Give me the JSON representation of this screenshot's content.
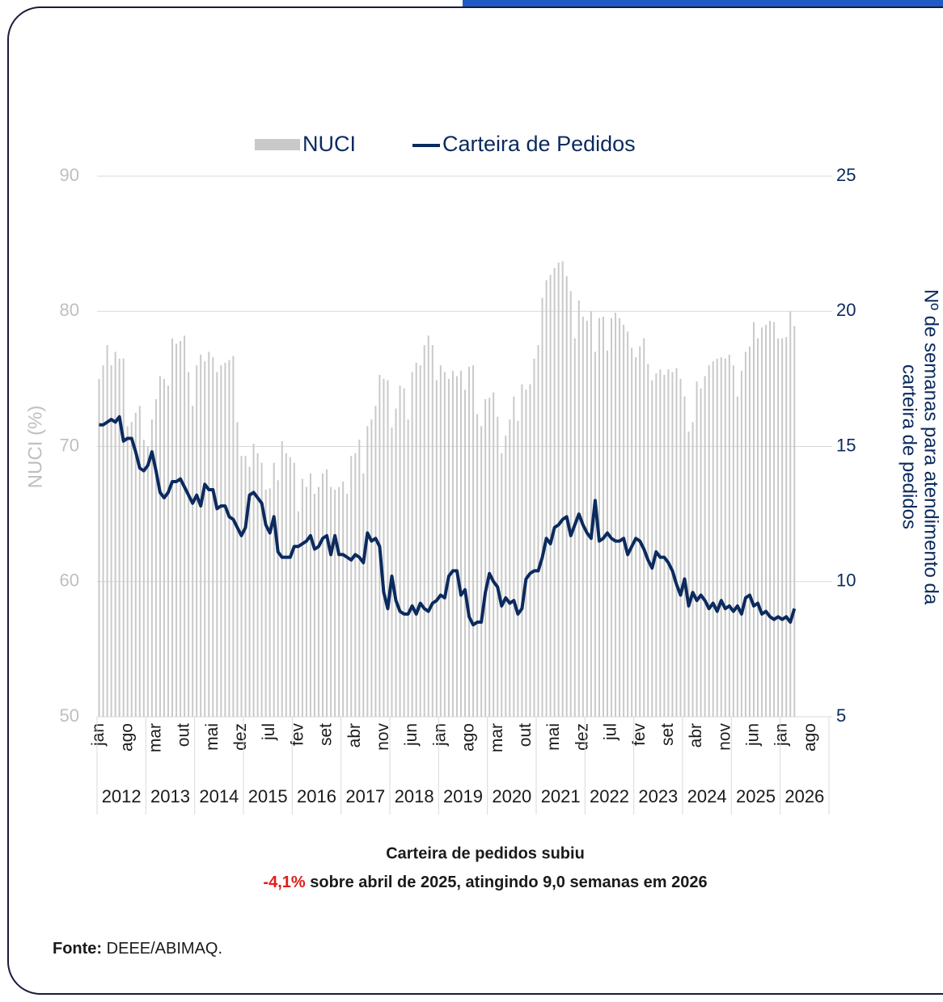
{
  "chart_data": {
    "type": "bar_line",
    "legend": "top",
    "grid": true,
    "categories": [
      "jan",
      null,
      null,
      null,
      null,
      null,
      null,
      "ago",
      null,
      null,
      null,
      null,
      null,
      null,
      "mar",
      null,
      null,
      null,
      null,
      null,
      null,
      "out",
      null,
      null,
      null,
      null,
      null,
      null,
      "mai",
      null,
      null,
      null,
      null,
      null,
      null,
      "dez",
      null,
      null,
      null,
      null,
      null,
      null,
      "jul",
      null,
      null,
      null,
      null,
      null,
      null,
      "fev",
      null,
      null,
      null,
      null,
      null,
      null,
      "set",
      null,
      null,
      null,
      null,
      null,
      null,
      "abr",
      null,
      null,
      null,
      null,
      null,
      null,
      "nov",
      null,
      null,
      null,
      null,
      null,
      null,
      "jun",
      null,
      null,
      null,
      null,
      null,
      null,
      "jan",
      null,
      null,
      null,
      null,
      null,
      null,
      "ago",
      null,
      null,
      null,
      null,
      null,
      null,
      "mar",
      null,
      null,
      null,
      null,
      null,
      null,
      "out",
      null,
      null,
      null,
      null,
      null,
      null,
      "mai",
      null,
      null,
      null,
      null,
      null,
      null,
      "dez",
      null,
      null,
      null,
      null,
      null,
      null,
      "jul",
      null,
      null,
      null,
      null,
      null,
      null,
      "fev",
      null,
      null,
      null,
      null,
      null,
      null,
      "set",
      null,
      null,
      null,
      null,
      null,
      null,
      "abr",
      null,
      null,
      null,
      null,
      null,
      null,
      "nov",
      null,
      null,
      null,
      null,
      null,
      null,
      "jun",
      null,
      null,
      null,
      null,
      null,
      null,
      "jan",
      null,
      null,
      null,
      null,
      null,
      null,
      "ago",
      null,
      null,
      null,
      null
    ],
    "years": [
      2012,
      2013,
      2014,
      2015,
      2016,
      2017,
      2018,
      2019,
      2020,
      2021,
      2022,
      2023,
      2024,
      2025,
      2026
    ],
    "ylabel": "NUCI (%)",
    "y2label": [
      "Nº de semanas para atendimento da",
      "carteira de pedidos"
    ],
    "ylim": [
      50,
      90
    ],
    "yticks": [
      50,
      60,
      70,
      80,
      90
    ],
    "y2lim": [
      5,
      25
    ],
    "y2ticks": [
      5,
      10,
      15,
      20,
      25
    ],
    "series": [
      {
        "name": "NUCI",
        "kind": "bar",
        "color": "#c9c9c9",
        "values": [
          75,
          76,
          77.5,
          76,
          77,
          76.5,
          76.5,
          71.5,
          71.8,
          72.5,
          73,
          70.5,
          70,
          72,
          73.5,
          75.2,
          75,
          74.5,
          78,
          77.6,
          77.8,
          78.2,
          75.5,
          73,
          76,
          76.8,
          76.3,
          77,
          76.6,
          75.5,
          76,
          76.2,
          76.4,
          76.7,
          71.8,
          69.3,
          69.3,
          68.5,
          70.2,
          69.5,
          68.8,
          66.8,
          66.9,
          68.8,
          67.5,
          70.4,
          69.5,
          69.2,
          68.8,
          65.2,
          67.6,
          67,
          68,
          66.5,
          67,
          68,
          68.3,
          67,
          66.8,
          67,
          67.4,
          66.5,
          69.3,
          69.5,
          70.5,
          68,
          71.5,
          72,
          73,
          75.3,
          75,
          74.9,
          71.4,
          72.8,
          74.5,
          74.3,
          72,
          75.5,
          76.2,
          76,
          77.5,
          78.2,
          77.5,
          74.9,
          76,
          75.5,
          75,
          75.6,
          75.2,
          75.6,
          74.2,
          75.9,
          76,
          72.4,
          71.5,
          73.5,
          73.6,
          74,
          72.2,
          69.5,
          70.8,
          72,
          73.7,
          71.9,
          74.6,
          74.2,
          74.6,
          76.5,
          77.5,
          81,
          82.3,
          82.7,
          83.2,
          83.6,
          83.7,
          82.6,
          81.5,
          78,
          80.8,
          79.6,
          79.3,
          80,
          77,
          79.5,
          79.6,
          77.1,
          79.5,
          79.9,
          79.5,
          79,
          78.5,
          77.3,
          76.6,
          77.4,
          78,
          76.1,
          74.9,
          75.4,
          75.7,
          75.3,
          75.7,
          75.5,
          75.8,
          75,
          73.7,
          71.1,
          71.8,
          74.8,
          74.3,
          75.2,
          76,
          76.3,
          76.5,
          76.6,
          76.5,
          76.8,
          76,
          73.7,
          75.6,
          77,
          77.4,
          79.2,
          78,
          78.8,
          79,
          79.3,
          79.2,
          78,
          78,
          78.1,
          80,
          78.9,
          null,
          null,
          null,
          null,
          null,
          null,
          null,
          null
        ]
      },
      {
        "name": "Carteira de Pedidos",
        "kind": "line",
        "axis": "y2",
        "color": "#0b2a5e",
        "values": [
          15.8,
          15.8,
          15.9,
          16,
          15.9,
          16.1,
          15.2,
          15.3,
          15.3,
          14.8,
          14.2,
          14.1,
          14.3,
          14.8,
          14.1,
          13.3,
          13.1,
          13.3,
          13.7,
          13.7,
          13.8,
          13.5,
          13.2,
          12.9,
          13.2,
          12.8,
          13.6,
          13.4,
          13.4,
          12.7,
          12.8,
          12.8,
          12.4,
          12.3,
          12,
          11.7,
          12,
          13.2,
          13.3,
          13.1,
          12.9,
          12.1,
          11.8,
          12.4,
          11.1,
          10.9,
          10.9,
          10.9,
          11.3,
          11.3,
          11.4,
          11.5,
          11.7,
          11.2,
          11.3,
          11.6,
          11.7,
          11,
          11.7,
          11,
          11,
          10.9,
          10.8,
          11,
          10.9,
          10.7,
          11.8,
          11.5,
          11.6,
          11.3,
          9.6,
          9,
          10.2,
          9.3,
          8.9,
          8.8,
          8.8,
          9.1,
          8.8,
          9.2,
          9,
          8.9,
          9.2,
          9.3,
          9.5,
          9.4,
          10.2,
          10.4,
          10.4,
          9.5,
          9.7,
          8.7,
          8.4,
          8.5,
          8.5,
          9.6,
          10.3,
          10,
          9.8,
          9.1,
          9.4,
          9.2,
          9.3,
          8.8,
          9,
          10.1,
          10.3,
          10.4,
          10.4,
          10.9,
          11.6,
          11.4,
          12,
          12.1,
          12.3,
          12.4,
          11.7,
          12.1,
          12.5,
          12.1,
          11.8,
          11.6,
          13,
          11.5,
          11.6,
          11.8,
          11.6,
          11.5,
          11.5,
          11.6,
          11,
          11.3,
          11.6,
          11.5,
          11.2,
          10.8,
          10.5,
          11.1,
          10.9,
          10.9,
          10.7,
          10.4,
          9.9,
          9.5,
          10.1,
          9.1,
          9.6,
          9.3,
          9.5,
          9.3,
          9,
          9.2,
          8.9,
          9.3,
          9,
          9.1,
          8.9,
          9.1,
          8.8,
          9.4,
          9.5,
          9.1,
          9.2,
          8.8,
          8.9,
          8.7,
          8.6,
          8.7,
          8.6,
          8.7,
          8.5,
          9,
          null,
          null,
          null,
          null,
          null,
          null,
          null,
          null
        ]
      }
    ],
    "annotation": {
      "line1": "Carteira de pedidos subiu",
      "highlight": "-4,1%",
      "line2": "sobre abril de 2025, atingindo 9,0 semanas em 2026"
    },
    "source": {
      "label": "Fonte:",
      "text": "DEEE/ABIMAQ."
    }
  }
}
